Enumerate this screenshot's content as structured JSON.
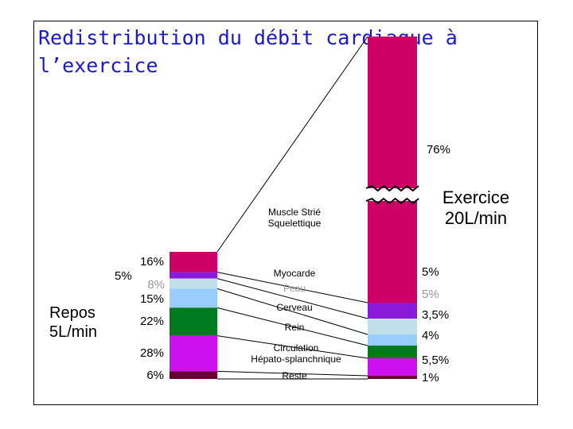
{
  "chart_data": {
    "type": "bar",
    "title": "Redistribution du débit cardiaque à l’exercice",
    "categories": [
      "Muscle Strié Squelettique",
      "Myocarde",
      "Peau",
      "Cerveau",
      "Rein",
      "Circulation Hépato-splanchnique",
      "Reste"
    ],
    "series": [
      {
        "name": "Repos 5L/min",
        "values": [
          16,
          5,
          8,
          15,
          22,
          28,
          6
        ],
        "labels": [
          "16%",
          "5%",
          "8%",
          "15%",
          "22%",
          "28%",
          "6%"
        ]
      },
      {
        "name": "Exercice 20L/min",
        "values": [
          76,
          5,
          5,
          3.5,
          4,
          5.5,
          1
        ],
        "labels": [
          "76%",
          "5%",
          "5%",
          "3,5%",
          "4%",
          "5,5%",
          "1%"
        ]
      }
    ],
    "colors": [
      "#cc0066",
      "#8a1ad9",
      "#bfe0e8",
      "#99ccff",
      "#007a1f",
      "#cc11ee",
      "#6b0033"
    ],
    "label_colors": [
      "#000000",
      "#000000",
      "#999999",
      "#000000",
      "#000000",
      "#000000",
      "#000000"
    ]
  }
}
